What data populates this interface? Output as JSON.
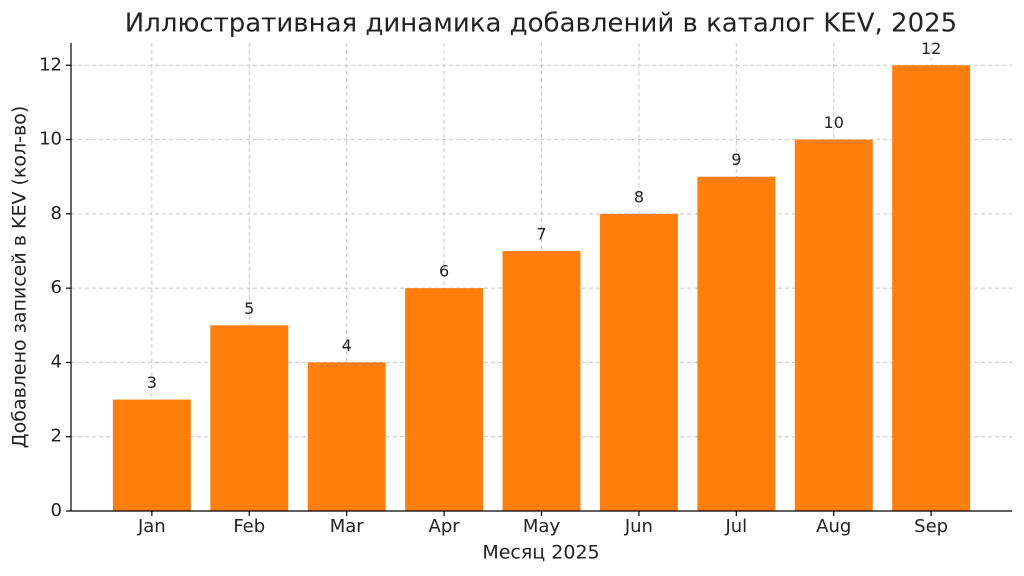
{
  "chart_data": {
    "type": "bar",
    "title": "Иллюстративная динамика добавлений в каталог KEV, 2025",
    "x_label": "Месяц 2025",
    "y_label": "Добавлено записей в KEV (кол-во)",
    "categories": [
      "Jan",
      "Feb",
      "Mar",
      "Apr",
      "May",
      "Jun",
      "Jul",
      "Aug",
      "Sep"
    ],
    "values": [
      3,
      5,
      4,
      6,
      7,
      8,
      9,
      10,
      12
    ],
    "color": "#ff7f0e",
    "ylim": [
      0,
      12.6
    ],
    "yticks": [
      0,
      2,
      4,
      6,
      8,
      10,
      12
    ],
    "grid": true
  }
}
